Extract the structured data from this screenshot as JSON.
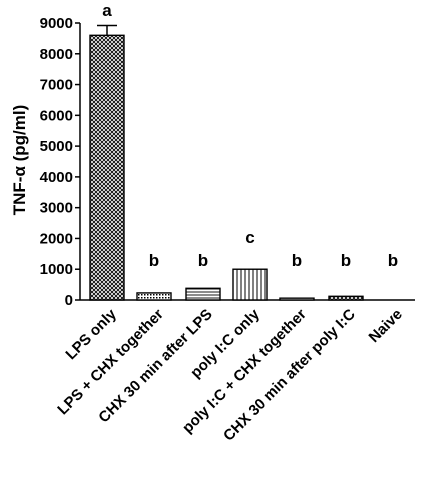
{
  "chart_data": {
    "type": "bar",
    "title": "",
    "xlabel": "",
    "ylabel": "TNF-α (pg/ml)",
    "ylim": [
      0,
      9000
    ],
    "yticks": [
      0,
      1000,
      2000,
      3000,
      4000,
      5000,
      6000,
      7000,
      8000,
      9000
    ],
    "grid": false,
    "categories": [
      "LPS only",
      "LPS + CHX together",
      "CHX 30 min after LPS",
      "poly I:C only",
      "poly I:C + CHX together",
      "CHX 30 min after poly I:C",
      "Naive"
    ],
    "values": [
      8600,
      230,
      380,
      1000,
      60,
      120,
      0
    ],
    "error": [
      320,
      null,
      null,
      null,
      null,
      null,
      null
    ],
    "significance": [
      "a",
      "b",
      "b",
      "c",
      "b",
      "b",
      "b"
    ],
    "patterns": [
      "crosshatch",
      "dotted",
      "horizontal",
      "vertical",
      "dotted",
      "crosshatch",
      "none"
    ]
  }
}
